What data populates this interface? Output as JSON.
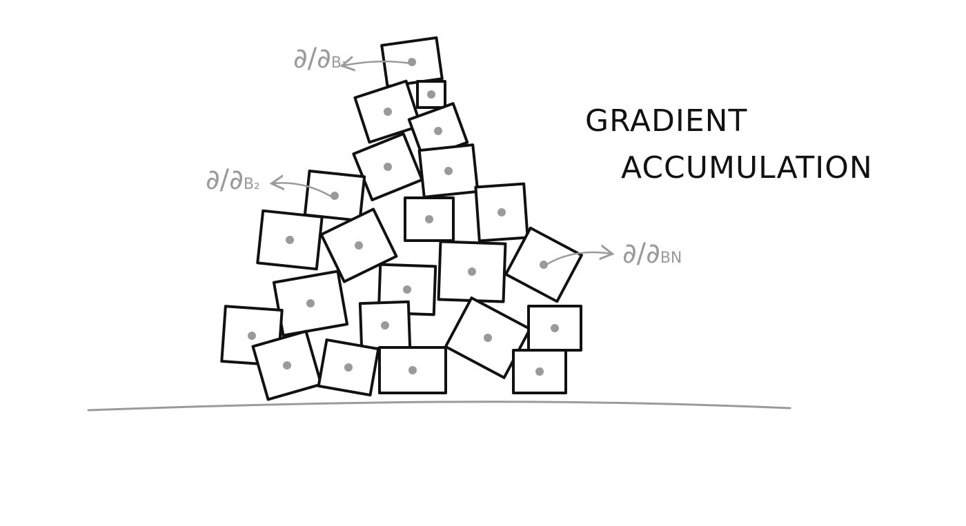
{
  "title": {
    "line1": "GRADIENT",
    "line2": "ACCUMULATION"
  },
  "gradient_labels": [
    {
      "main": "∂/∂",
      "sub": "B₁"
    },
    {
      "main": "∂/∂",
      "sub": "B₂"
    },
    {
      "main": "∂/∂",
      "sub": "BN"
    }
  ],
  "colors": {
    "stroke": "#111111",
    "accent_gray": "#9a9a9a",
    "ground": "#9a9a9a",
    "background": "#ffffff"
  }
}
